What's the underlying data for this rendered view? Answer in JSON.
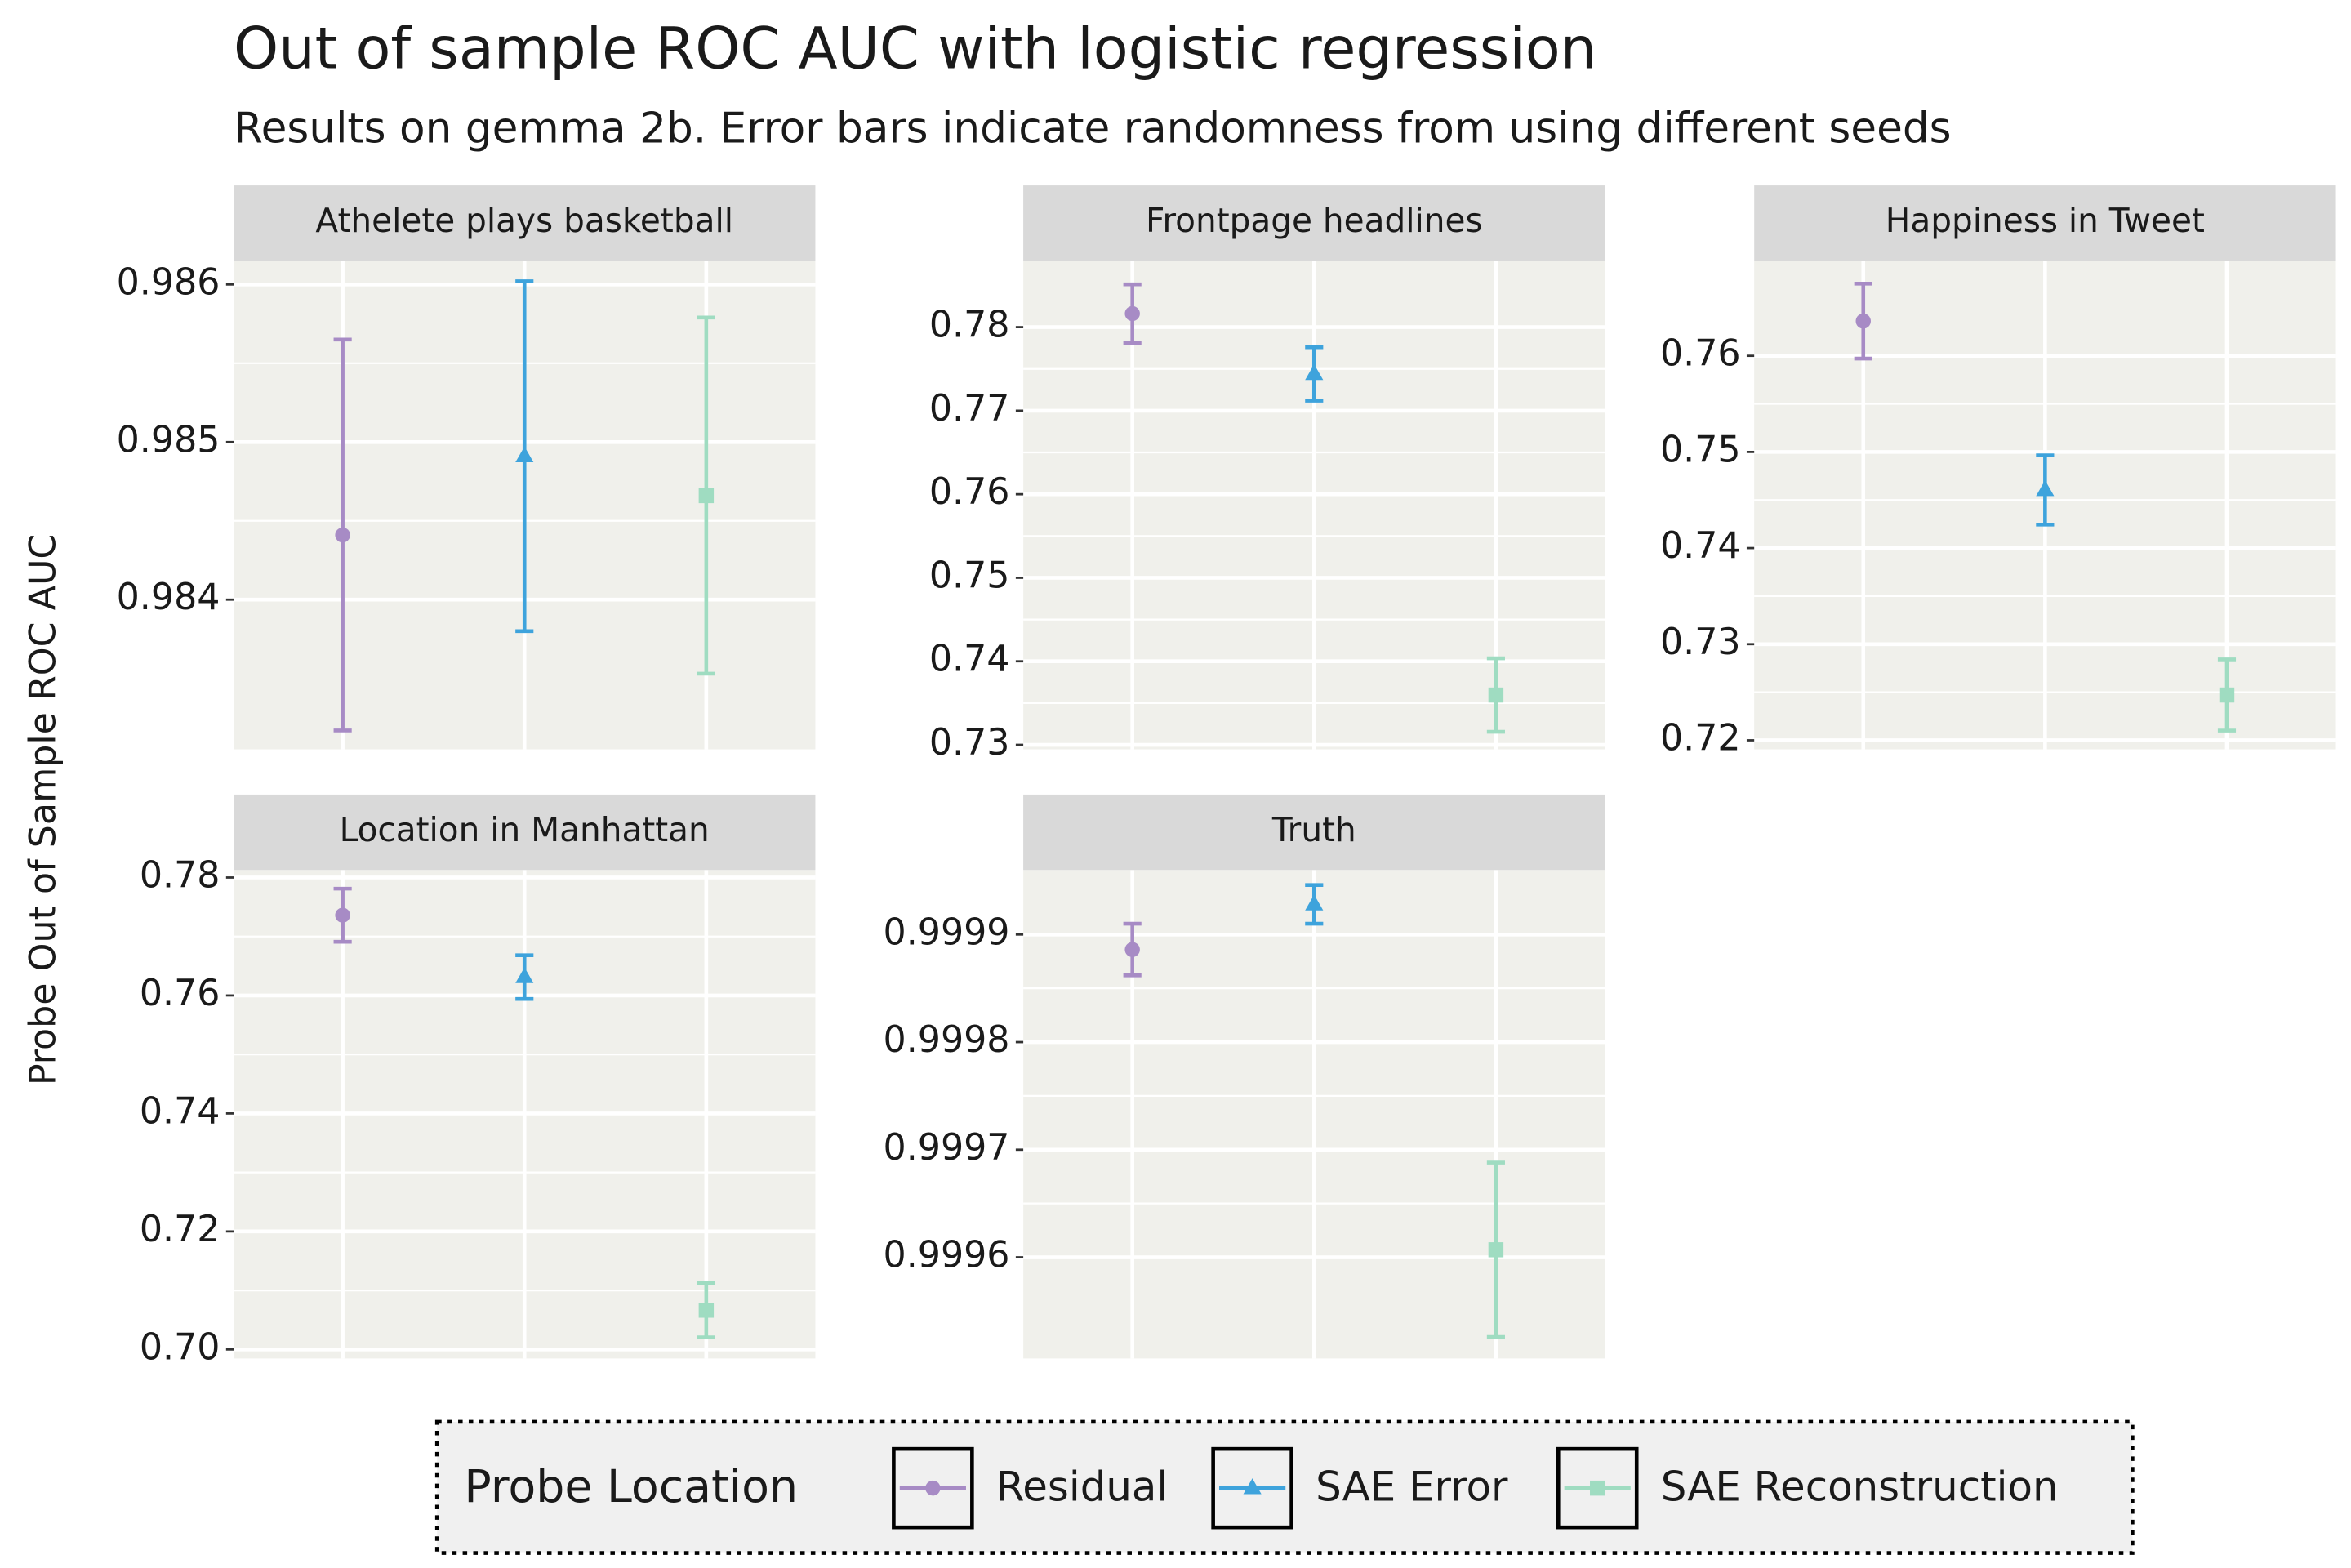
{
  "title": "Out of sample ROC AUC with logistic regression",
  "subtitle": "Results on gemma 2b. Error bars indicate randomness from using different seeds",
  "y_axis_label": "Probe Out of Sample ROC AUC",
  "legend": {
    "title": "Probe Location",
    "position": "bottom",
    "entries": [
      {
        "name": "Residual",
        "color": "#a78bc5",
        "marker": "circle"
      },
      {
        "name": "SAE Error",
        "color": "#3ea3dc",
        "marker": "triangle"
      },
      {
        "name": "SAE Reconstruction",
        "color": "#9fdcc1",
        "marker": "square"
      }
    ]
  },
  "grid": true,
  "chart_data": [
    {
      "type": "errorbar",
      "title": "Athelete plays basketball",
      "values": [
        0.98441,
        0.98491,
        0.98466
      ],
      "errors": [
        0.00124,
        0.00111,
        0.00113
      ],
      "ylim": [
        0.98305,
        0.98615
      ],
      "yticks": [
        0.984,
        0.985,
        0.986
      ]
    },
    {
      "type": "errorbar",
      "title": "Frontpage headlines",
      "values": [
        0.78162,
        0.7744,
        0.73596
      ],
      "errors": [
        0.0035,
        0.0032,
        0.0044
      ],
      "ylim": [
        0.72946,
        0.78794
      ],
      "yticks": [
        0.73,
        0.74,
        0.75,
        0.76,
        0.77,
        0.78
      ]
    },
    {
      "type": "errorbar",
      "title": "Happiness in Tweet",
      "values": [
        0.76361,
        0.74604,
        0.72471
      ],
      "errors": [
        0.0039,
        0.0036,
        0.0037
      ],
      "ylim": [
        0.71906,
        0.76988
      ],
      "yticks": [
        0.72,
        0.73,
        0.74,
        0.75,
        0.76
      ]
    },
    {
      "type": "errorbar",
      "title": "Location in Manhattan",
      "values": [
        0.77361,
        0.76312,
        0.70665
      ],
      "errors": [
        0.0045,
        0.0037,
        0.0046
      ],
      "ylim": [
        0.69847,
        0.78128
      ],
      "yticks": [
        {
          "value": 0.7,
          "label": "0.70"
        },
        0.72,
        0.74,
        0.76,
        0.78
      ]
    },
    {
      "type": "errorbar",
      "title": "Truth",
      "values": [
        0.999886,
        0.999928,
        0.999607
      ],
      "errors": [
        2.4e-05,
        1.8e-05,
        8.1e-05
      ],
      "ylim": [
        0.999506,
        0.99996
      ],
      "yticks": [
        0.9996,
        0.9997,
        0.9998,
        0.9999
      ]
    }
  ]
}
